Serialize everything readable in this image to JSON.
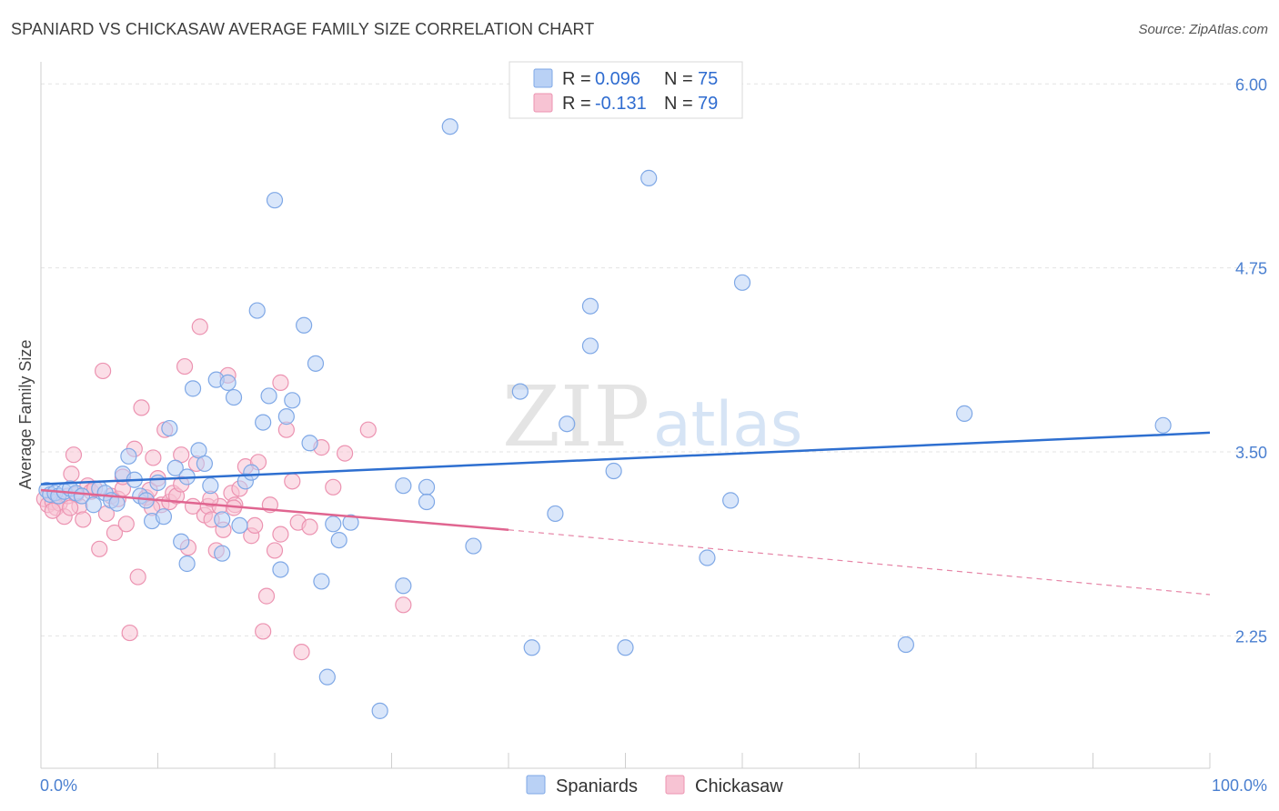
{
  "title": "SPANIARD VS CHICKASAW AVERAGE FAMILY SIZE CORRELATION CHART",
  "source": "Source: ZipAtlas.com",
  "watermark": {
    "zip": "ZIP",
    "atlas": "atlas"
  },
  "chart_data": {
    "type": "scatter",
    "ylabel": "Average Family Size",
    "xlabel": "",
    "x_tick_labels": [
      "0.0%",
      "100.0%"
    ],
    "xlim": [
      0,
      100
    ],
    "ylim": [
      1.35,
      6.15
    ],
    "y_ticks": [
      2.25,
      3.5,
      4.75,
      6.0
    ],
    "y_tick_labels": [
      "2.25",
      "3.50",
      "4.75",
      "6.00"
    ],
    "grid": "horizontal dashed",
    "legend_position": "top-center",
    "colors": {
      "spaniards_fill": "#b9d1f5",
      "spaniards_stroke": "#7fa8e6",
      "spaniards_line": "#2e6fd0",
      "chickasaw_fill": "#f7c3d3",
      "chickasaw_stroke": "#ec93b1",
      "chickasaw_line": "#e06590",
      "tick_text": "#4a7fd0"
    },
    "stats": [
      {
        "r_label": "R =",
        "r": "0.096",
        "n_label": "N =",
        "n": "75"
      },
      {
        "r_label": "R =",
        "r": "-0.131",
        "n_label": "N =",
        "n": "79"
      }
    ],
    "series": [
      {
        "name": "Spaniards",
        "trend": {
          "x": [
            0,
            100
          ],
          "y": [
            3.28,
            3.63
          ]
        },
        "points": [
          [
            0.5,
            3.24
          ],
          [
            0.8,
            3.21
          ],
          [
            1.2,
            3.22
          ],
          [
            1.5,
            3.2
          ],
          [
            2,
            3.23
          ],
          [
            2.5,
            3.25
          ],
          [
            3,
            3.22
          ],
          [
            3.5,
            3.2
          ],
          [
            4.5,
            3.14
          ],
          [
            5,
            3.25
          ],
          [
            5.5,
            3.22
          ],
          [
            6,
            3.17
          ],
          [
            6.5,
            3.15
          ],
          [
            7,
            3.35
          ],
          [
            7.5,
            3.47
          ],
          [
            8.5,
            3.2
          ],
          [
            9,
            3.17
          ],
          [
            9.5,
            3.03
          ],
          [
            10,
            3.29
          ],
          [
            10.5,
            3.06
          ],
          [
            11,
            3.66
          ],
          [
            11.5,
            3.39
          ],
          [
            12,
            2.89
          ],
          [
            12.5,
            2.74
          ],
          [
            13,
            3.93
          ],
          [
            13.5,
            3.51
          ],
          [
            14,
            3.42
          ],
          [
            14.5,
            3.27
          ],
          [
            15,
            3.99
          ],
          [
            15.5,
            2.81
          ],
          [
            15.5,
            3.04
          ],
          [
            16,
            3.97
          ],
          [
            16.5,
            3.87
          ],
          [
            17,
            3.0
          ],
          [
            17.5,
            3.3
          ],
          [
            18,
            3.36
          ],
          [
            18.5,
            4.46
          ],
          [
            19,
            3.7
          ],
          [
            19.5,
            3.88
          ],
          [
            20,
            5.21
          ],
          [
            20.5,
            2.7
          ],
          [
            21,
            3.74
          ],
          [
            21.5,
            3.85
          ],
          [
            22.5,
            4.36
          ],
          [
            23,
            3.56
          ],
          [
            23.5,
            4.1
          ],
          [
            24,
            2.62
          ],
          [
            24.5,
            1.97
          ],
          [
            25,
            3.01
          ],
          [
            25.5,
            2.9
          ],
          [
            26.5,
            3.02
          ],
          [
            29,
            1.74
          ],
          [
            31,
            2.59
          ],
          [
            31,
            3.27
          ],
          [
            33,
            3.26
          ],
          [
            33,
            3.16
          ],
          [
            35,
            5.71
          ],
          [
            37,
            2.86
          ],
          [
            41,
            3.91
          ],
          [
            42,
            2.17
          ],
          [
            44,
            3.08
          ],
          [
            45,
            3.69
          ],
          [
            47,
            4.49
          ],
          [
            47,
            4.22
          ],
          [
            49,
            3.37
          ],
          [
            50,
            2.17
          ],
          [
            52,
            5.36
          ],
          [
            57,
            2.78
          ],
          [
            59,
            3.17
          ],
          [
            60,
            4.65
          ],
          [
            74,
            2.19
          ],
          [
            79,
            3.76
          ],
          [
            96,
            3.68
          ],
          [
            8,
            3.31
          ],
          [
            12.5,
            3.33
          ]
        ]
      },
      {
        "name": "Chickasaw",
        "trend": {
          "x": [
            0,
            40
          ],
          "y": [
            3.24,
            2.97
          ]
        },
        "trend_dashed": {
          "x": [
            40,
            100
          ],
          "y": [
            2.97,
            2.53
          ]
        },
        "points": [
          [
            0.3,
            3.18
          ],
          [
            0.6,
            3.14
          ],
          [
            1,
            3.16
          ],
          [
            1.3,
            3.12
          ],
          [
            1.6,
            3.15
          ],
          [
            2,
            3.06
          ],
          [
            2.3,
            3.2
          ],
          [
            2.6,
            3.35
          ],
          [
            2.8,
            3.48
          ],
          [
            3,
            3.21
          ],
          [
            3.3,
            3.13
          ],
          [
            3.6,
            3.04
          ],
          [
            4,
            3.27
          ],
          [
            4.3,
            3.23
          ],
          [
            4.6,
            3.25
          ],
          [
            5,
            2.84
          ],
          [
            5.3,
            4.05
          ],
          [
            5.6,
            3.08
          ],
          [
            6,
            3.2
          ],
          [
            6.3,
            2.95
          ],
          [
            6.6,
            3.18
          ],
          [
            7,
            3.25
          ],
          [
            7.3,
            3.01
          ],
          [
            7.6,
            2.27
          ],
          [
            8,
            3.52
          ],
          [
            8.3,
            2.65
          ],
          [
            8.6,
            3.8
          ],
          [
            9,
            3.19
          ],
          [
            9.3,
            3.24
          ],
          [
            9.6,
            3.46
          ],
          [
            10,
            3.32
          ],
          [
            10.3,
            3.14
          ],
          [
            10.6,
            3.65
          ],
          [
            11,
            3.16
          ],
          [
            11.3,
            3.22
          ],
          [
            11.6,
            3.2
          ],
          [
            12,
            3.48
          ],
          [
            12.3,
            4.08
          ],
          [
            12.6,
            2.85
          ],
          [
            13,
            3.13
          ],
          [
            13.3,
            3.42
          ],
          [
            13.6,
            4.35
          ],
          [
            14,
            3.07
          ],
          [
            14.3,
            3.13
          ],
          [
            14.6,
            3.04
          ],
          [
            15,
            2.83
          ],
          [
            15.3,
            3.13
          ],
          [
            15.6,
            2.97
          ],
          [
            16,
            4.02
          ],
          [
            16.3,
            3.22
          ],
          [
            16.6,
            3.14
          ],
          [
            17,
            3.25
          ],
          [
            17.5,
            3.4
          ],
          [
            18,
            2.93
          ],
          [
            18.3,
            3.0
          ],
          [
            18.6,
            3.43
          ],
          [
            19,
            2.28
          ],
          [
            19.3,
            2.52
          ],
          [
            19.6,
            3.14
          ],
          [
            20,
            2.83
          ],
          [
            20.5,
            3.97
          ],
          [
            21,
            3.65
          ],
          [
            21.5,
            3.3
          ],
          [
            22,
            3.02
          ],
          [
            22.3,
            2.14
          ],
          [
            23,
            2.99
          ],
          [
            24,
            3.53
          ],
          [
            25,
            3.26
          ],
          [
            26,
            3.49
          ],
          [
            28,
            3.65
          ],
          [
            31,
            2.46
          ],
          [
            1,
            3.1
          ],
          [
            2.5,
            3.12
          ],
          [
            7,
            3.33
          ],
          [
            9.5,
            3.12
          ],
          [
            12,
            3.28
          ],
          [
            14.5,
            3.18
          ],
          [
            16.5,
            3.12
          ],
          [
            20.5,
            2.94
          ]
        ]
      }
    ]
  },
  "legend_bottom": [
    {
      "label": "Spaniards"
    },
    {
      "label": "Chickasaw"
    }
  ]
}
